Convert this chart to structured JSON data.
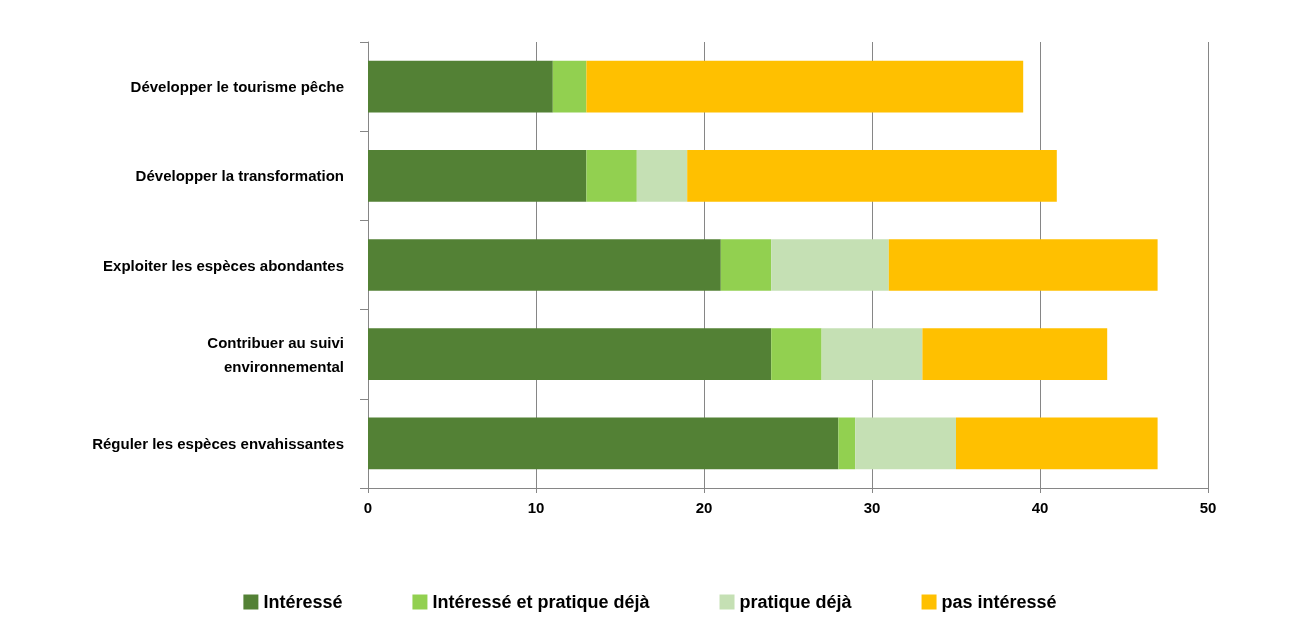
{
  "chart_data": {
    "type": "bar",
    "orientation": "horizontal",
    "stacked": true,
    "categories": [
      "Développer le tourisme pêche",
      "Développer la transformation",
      "Exploiter les espèces abondantes",
      "Contribuer au suivi\nenvironnemental",
      "Réguler les espèces envahissantes"
    ],
    "series": [
      {
        "name": "Intéressé",
        "color": "#538135",
        "values": [
          11,
          13,
          21,
          24,
          28
        ]
      },
      {
        "name": "Intéressé et pratique déjà",
        "color": "#92d050",
        "values": [
          2,
          3,
          3,
          3,
          1
        ]
      },
      {
        "name": "pratique déjà",
        "color": "#c5e0b4",
        "values": [
          0,
          3,
          7,
          6,
          6
        ]
      },
      {
        "name": "pas intéressé",
        "color": "#ffc000",
        "values": [
          26,
          22,
          16,
          11,
          12
        ]
      }
    ],
    "xlim": [
      0,
      50
    ],
    "xticks": [
      0,
      10,
      20,
      30,
      40,
      50
    ],
    "grid": "x",
    "legend": "bottom"
  }
}
